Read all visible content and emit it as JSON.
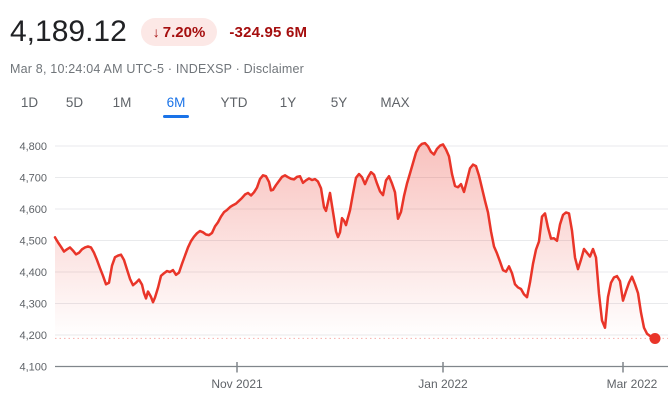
{
  "header": {
    "price": "4,189.12",
    "badge_arrow": "↓",
    "change_percent": "7.20%",
    "change_absolute": "-324.95 6M",
    "subtitle_prefix": "Mar 8, 10:24:04 AM UTC-5 · INDEXSP ·",
    "disclaimer_label": "Disclaimer"
  },
  "tabs": {
    "items": [
      {
        "label": "1D",
        "active": false
      },
      {
        "label": "5D",
        "active": false
      },
      {
        "label": "1M",
        "active": false
      },
      {
        "label": "6M",
        "active": true
      },
      {
        "label": "YTD",
        "active": false
      },
      {
        "label": "1Y",
        "active": false
      },
      {
        "label": "5Y",
        "active": false
      },
      {
        "label": "MAX",
        "active": false
      }
    ]
  },
  "colors": {
    "price_text": "#202124",
    "negative_text": "#a50e0e",
    "badge_bg": "#fce8e6",
    "line": "#e93529",
    "accent_blue": "#1a73e8",
    "gridline": "#e9eaec",
    "axis_line": "#80868b",
    "axis_label": "#5f6368"
  },
  "chart_data": {
    "type": "area",
    "title": "INDEXSP (S&P 500) 6-month price chart",
    "legend": [],
    "grid": "horizontal",
    "ylim": [
      4100,
      4800
    ],
    "y_axis": {
      "min": 4100,
      "max": 4800,
      "step": 100
    },
    "x_ticks": [
      {
        "label": "Nov 2021",
        "x": 237
      },
      {
        "label": "Jan 2022",
        "x": 443
      },
      {
        "label": "Mar 2022",
        "x": 623
      }
    ],
    "last_price": 4189.12,
    "reference_price": 4189.12,
    "points": [
      [
        55,
        4510
      ],
      [
        58,
        4494
      ],
      [
        61,
        4480
      ],
      [
        64,
        4465
      ],
      [
        67,
        4472
      ],
      [
        70,
        4478
      ],
      [
        73,
        4468
      ],
      [
        76,
        4456
      ],
      [
        79,
        4461
      ],
      [
        82,
        4472
      ],
      [
        85,
        4478
      ],
      [
        88,
        4481
      ],
      [
        91,
        4478
      ],
      [
        94,
        4461
      ],
      [
        97,
        4438
      ],
      [
        100,
        4412
      ],
      [
        103,
        4388
      ],
      [
        106,
        4361
      ],
      [
        109,
        4366
      ],
      [
        112,
        4420
      ],
      [
        115,
        4447
      ],
      [
        118,
        4452
      ],
      [
        121,
        4455
      ],
      [
        124,
        4438
      ],
      [
        127,
        4408
      ],
      [
        130,
        4378
      ],
      [
        133,
        4358
      ],
      [
        136,
        4366
      ],
      [
        139,
        4376
      ],
      [
        142,
        4360
      ],
      [
        144,
        4333
      ],
      [
        146,
        4316
      ],
      [
        148,
        4338
      ],
      [
        151,
        4321
      ],
      [
        153,
        4304
      ],
      [
        155,
        4319
      ],
      [
        158,
        4350
      ],
      [
        161,
        4388
      ],
      [
        164,
        4396
      ],
      [
        167,
        4403
      ],
      [
        170,
        4400
      ],
      [
        173,
        4406
      ],
      [
        176,
        4391
      ],
      [
        179,
        4398
      ],
      [
        182,
        4426
      ],
      [
        185,
        4452
      ],
      [
        188,
        4478
      ],
      [
        191,
        4498
      ],
      [
        194,
        4512
      ],
      [
        197,
        4523
      ],
      [
        200,
        4530
      ],
      [
        203,
        4526
      ],
      [
        206,
        4519
      ],
      [
        209,
        4517
      ],
      [
        212,
        4524
      ],
      [
        215,
        4545
      ],
      [
        218,
        4558
      ],
      [
        221,
        4576
      ],
      [
        224,
        4590
      ],
      [
        227,
        4597
      ],
      [
        230,
        4606
      ],
      [
        233,
        4612
      ],
      [
        236,
        4617
      ],
      [
        239,
        4626
      ],
      [
        242,
        4635
      ],
      [
        245,
        4646
      ],
      [
        248,
        4651
      ],
      [
        251,
        4643
      ],
      [
        254,
        4653
      ],
      [
        257,
        4668
      ],
      [
        260,
        4695
      ],
      [
        263,
        4707
      ],
      [
        266,
        4704
      ],
      [
        269,
        4686
      ],
      [
        271,
        4659
      ],
      [
        273,
        4661
      ],
      [
        276,
        4676
      ],
      [
        279,
        4689
      ],
      [
        282,
        4702
      ],
      [
        285,
        4707
      ],
      [
        288,
        4701
      ],
      [
        291,
        4696
      ],
      [
        294,
        4694
      ],
      [
        297,
        4702
      ],
      [
        300,
        4704
      ],
      [
        303,
        4683
      ],
      [
        306,
        4691
      ],
      [
        309,
        4697
      ],
      [
        312,
        4692
      ],
      [
        315,
        4695
      ],
      [
        318,
        4687
      ],
      [
        321,
        4666
      ],
      [
        324,
        4606
      ],
      [
        326,
        4594
      ],
      [
        328,
        4622
      ],
      [
        330,
        4651
      ],
      [
        332,
        4611
      ],
      [
        334,
        4571
      ],
      [
        336,
        4529
      ],
      [
        338,
        4511
      ],
      [
        340,
        4526
      ],
      [
        342,
        4571
      ],
      [
        344,
        4563
      ],
      [
        346,
        4549
      ],
      [
        348,
        4573
      ],
      [
        350,
        4596
      ],
      [
        353,
        4649
      ],
      [
        356,
        4699
      ],
      [
        359,
        4711
      ],
      [
        362,
        4701
      ],
      [
        365,
        4679
      ],
      [
        368,
        4701
      ],
      [
        371,
        4717
      ],
      [
        374,
        4709
      ],
      [
        377,
        4681
      ],
      [
        380,
        4656
      ],
      [
        383,
        4644
      ],
      [
        386,
        4691
      ],
      [
        389,
        4704
      ],
      [
        392,
        4681
      ],
      [
        395,
        4653
      ],
      [
        398,
        4569
      ],
      [
        401,
        4591
      ],
      [
        404,
        4641
      ],
      [
        407,
        4681
      ],
      [
        410,
        4713
      ],
      [
        413,
        4746
      ],
      [
        416,
        4779
      ],
      [
        419,
        4798
      ],
      [
        422,
        4807
      ],
      [
        425,
        4809
      ],
      [
        428,
        4799
      ],
      [
        431,
        4781
      ],
      [
        434,
        4773
      ],
      [
        437,
        4791
      ],
      [
        440,
        4801
      ],
      [
        443,
        4805
      ],
      [
        446,
        4789
      ],
      [
        449,
        4767
      ],
      [
        452,
        4711
      ],
      [
        455,
        4673
      ],
      [
        458,
        4669
      ],
      [
        461,
        4679
      ],
      [
        464,
        4654
      ],
      [
        467,
        4691
      ],
      [
        470,
        4729
      ],
      [
        473,
        4741
      ],
      [
        476,
        4736
      ],
      [
        479,
        4706
      ],
      [
        482,
        4666
      ],
      [
        485,
        4626
      ],
      [
        488,
        4589
      ],
      [
        491,
        4529
      ],
      [
        494,
        4481
      ],
      [
        497,
        4459
      ],
      [
        500,
        4433
      ],
      [
        503,
        4406
      ],
      [
        506,
        4401
      ],
      [
        509,
        4418
      ],
      [
        512,
        4396
      ],
      [
        515,
        4361
      ],
      [
        518,
        4351
      ],
      [
        521,
        4346
      ],
      [
        524,
        4329
      ],
      [
        527,
        4320
      ],
      [
        530,
        4367
      ],
      [
        533,
        4426
      ],
      [
        536,
        4471
      ],
      [
        539,
        4497
      ],
      [
        542,
        4576
      ],
      [
        545,
        4586
      ],
      [
        548,
        4541
      ],
      [
        551,
        4506
      ],
      [
        554,
        4507
      ],
      [
        557,
        4499
      ],
      [
        560,
        4551
      ],
      [
        563,
        4581
      ],
      [
        566,
        4589
      ],
      [
        569,
        4586
      ],
      [
        572,
        4531
      ],
      [
        575,
        4446
      ],
      [
        578,
        4409
      ],
      [
        581,
        4439
      ],
      [
        584,
        4473
      ],
      [
        587,
        4461
      ],
      [
        590,
        4449
      ],
      [
        593,
        4473
      ],
      [
        596,
        4446
      ],
      [
        599,
        4331
      ],
      [
        602,
        4246
      ],
      [
        605,
        4223
      ],
      [
        608,
        4321
      ],
      [
        611,
        4366
      ],
      [
        614,
        4383
      ],
      [
        617,
        4387
      ],
      [
        620,
        4371
      ],
      [
        623,
        4309
      ],
      [
        626,
        4339
      ],
      [
        629,
        4366
      ],
      [
        632,
        4385
      ],
      [
        635,
        4361
      ],
      [
        638,
        4333
      ],
      [
        641,
        4271
      ],
      [
        644,
        4223
      ],
      [
        647,
        4204
      ],
      [
        650,
        4197
      ],
      [
        653,
        4192
      ],
      [
        655,
        4189
      ]
    ]
  }
}
